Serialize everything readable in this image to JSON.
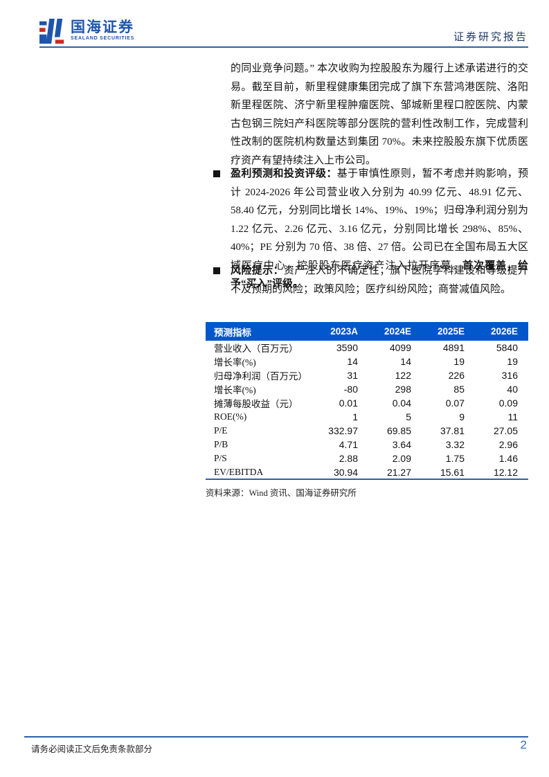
{
  "header": {
    "logo_cn": "国海证券",
    "logo_en": "SEALAND SECURITIES",
    "report_type": "证券研究报告"
  },
  "body": {
    "paragraph": "的同业竞争问题。” 本次收购为控股股东为履行上述承诺进行的交易。截至目前，新里程健康集团完成了旗下东营鸿港医院、洛阳新里程医院、济宁新里程肿瘤医院、邹城新里程口腔医院、内蒙古包钢三院妇产科医院等部分医院的营利性改制工作，完成营利性改制的医院机构数量达到集团 70%。未来控股股东旗下优质医疗资产有望持续注入上市公司。",
    "bullets": [
      {
        "bold_lead": "盈利预测和投资评级：",
        "text": "基于审慎性原则，暂不考虑并购影响，预计 2024-2026 年公司营业收入分别为 40.99 亿元、48.91 亿元、58.40 亿元，分别同比增长 14%、19%、19%；归母净利润分别为 1.22 亿元、2.26 亿元、3.16 亿元，分别同比增长 298%、85%、40%；PE 分别为 70 倍、38 倍、27 倍。公司已在全国布局五大区域医疗中心，控股股东医疗资产注入拉开序幕。",
        "bold_tail": "首次覆盖，给予“买入”评级。"
      },
      {
        "bold_lead": "风险提示：",
        "text": "资产注入的不确定性；旗下医院学科建设和等级提升不及预期的风险；政策风险；医疗纠纷风险；商誉减值风险。",
        "bold_tail": ""
      }
    ]
  },
  "chart_data": {
    "type": "table",
    "title": "预测指标",
    "columns": [
      "预测指标",
      "2023A",
      "2024E",
      "2025E",
      "2026E"
    ],
    "rows": [
      [
        "营业收入（百万元）",
        "3590",
        "4099",
        "4891",
        "5840"
      ],
      [
        "增长率(%)",
        "14",
        "14",
        "19",
        "19"
      ],
      [
        "归母净利润（百万元）",
        "31",
        "122",
        "226",
        "316"
      ],
      [
        "增长率(%)",
        "-80",
        "298",
        "85",
        "40"
      ],
      [
        "摊薄每股收益（元）",
        "0.01",
        "0.04",
        "0.07",
        "0.09"
      ],
      [
        "ROE(%)",
        "1",
        "5",
        "9",
        "11"
      ],
      [
        "P/E",
        "332.97",
        "69.85",
        "37.81",
        "27.05"
      ],
      [
        "P/B",
        "4.71",
        "3.64",
        "3.32",
        "2.96"
      ],
      [
        "P/S",
        "2.88",
        "2.09",
        "1.75",
        "1.46"
      ],
      [
        "EV/EBITDA",
        "30.94",
        "21.27",
        "15.61",
        "12.12"
      ]
    ],
    "source": "资料来源：Wind 资讯、国海证券研究所"
  },
  "footer": {
    "disclaimer": "请务必阅读正文后免责条款部分",
    "page_number": "2"
  },
  "colors": {
    "brand_blue": "#1d55ae",
    "brand_red": "#cf2a23",
    "table_header_bg": "#0257cb",
    "rule_blue": "#2d5fa6",
    "title_navy": "#1f3864",
    "page_number_blue": "#2f6fc4"
  }
}
